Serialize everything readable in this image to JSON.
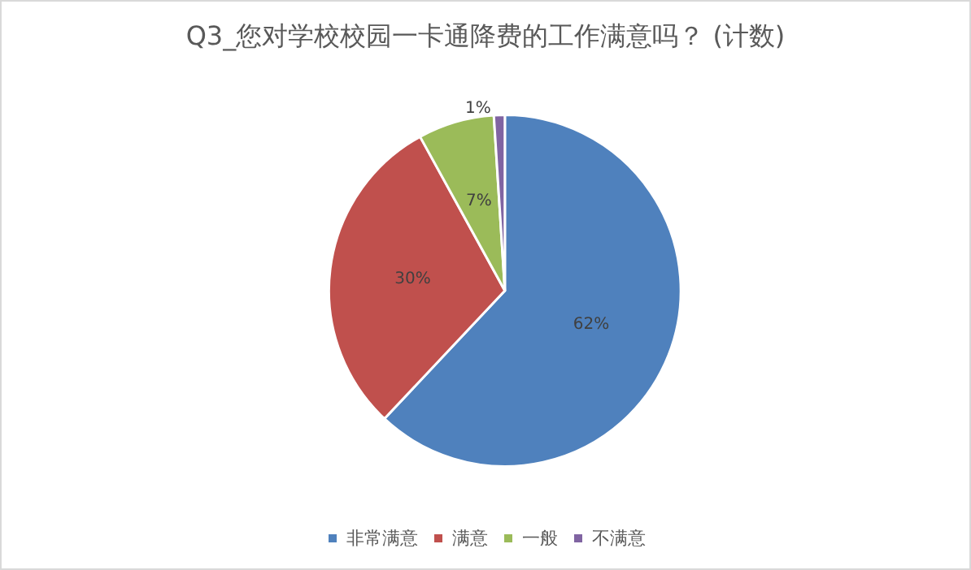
{
  "chart_data": {
    "type": "pie",
    "title": "Q3_您对学校校园一卡通降费的工作满意吗？ (计数)",
    "categories": [
      "非常满意",
      "满意",
      "一般",
      "不满意"
    ],
    "values": [
      62,
      30,
      7,
      1
    ],
    "colors": [
      "#4f81bd",
      "#c0504d",
      "#9bbb59",
      "#8064a2"
    ],
    "value_labels": [
      "62%",
      "30%",
      "7%",
      "1%"
    ],
    "legend": "bottom"
  }
}
